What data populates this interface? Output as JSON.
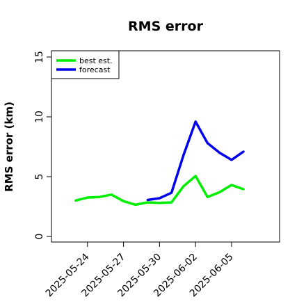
{
  "chart_data": {
    "type": "line",
    "title": "RMS error",
    "xlabel": "",
    "ylabel": "RMS error (km)",
    "ylim": [
      0,
      15
    ],
    "yticks": [
      0,
      5,
      10,
      15
    ],
    "xlim": [
      "2025-05-21",
      "2025-06-09"
    ],
    "xticks": [
      "2025-05-24",
      "2025-05-27",
      "2025-05-30",
      "2025-06-02",
      "2025-06-05"
    ],
    "grid": false,
    "legend_position": "top-left",
    "series": [
      {
        "name": "best est.",
        "color": "#00ee00",
        "x": [
          "2025-05-23",
          "2025-05-24",
          "2025-05-25",
          "2025-05-26",
          "2025-05-27",
          "2025-05-28",
          "2025-05-29",
          "2025-05-30",
          "2025-05-31",
          "2025-06-01",
          "2025-06-02",
          "2025-06-03",
          "2025-06-04",
          "2025-06-05",
          "2025-06-06"
        ],
        "values": [
          3.0,
          3.25,
          3.3,
          3.5,
          2.95,
          2.65,
          2.85,
          2.8,
          2.85,
          4.2,
          5.05,
          3.3,
          3.7,
          4.3,
          3.95
        ]
      },
      {
        "name": "forecast",
        "color": "#0000ee",
        "x": [
          "2025-05-29",
          "2025-05-30",
          "2025-05-31",
          "2025-06-01",
          "2025-06-02",
          "2025-06-03",
          "2025-06-04",
          "2025-06-05",
          "2025-06-06"
        ],
        "values": [
          3.05,
          3.2,
          3.65,
          6.8,
          9.6,
          7.8,
          7.0,
          6.4,
          7.1
        ]
      }
    ]
  }
}
